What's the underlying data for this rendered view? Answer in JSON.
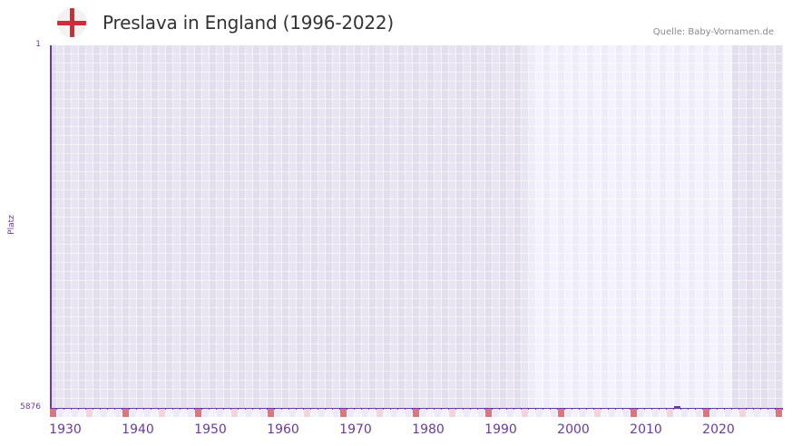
{
  "header": {
    "title": "Preslava in England (1996-2022)",
    "flag_icon": "england-flag-icon",
    "source": "Quelle: Baby-Vornamen.de"
  },
  "colors": {
    "axis": "#6a3aa0",
    "grid_dark": "#e4e0ef",
    "grid_light": "#f1eefb",
    "decade_marker": "#e0737c",
    "midyear_marker": "#f6d3dc",
    "flag_red": "#d22a36"
  },
  "chart_data": {
    "type": "line",
    "title": "Preslava in England (1996-2022)",
    "xlabel": "",
    "ylabel": "Platz",
    "y_ticks": [
      "1",
      "5876"
    ],
    "ylim": [
      5876,
      1
    ],
    "y_inverted": true,
    "x_ticks": [
      1930,
      1940,
      1950,
      1960,
      1970,
      1980,
      1990,
      2000,
      2010,
      2020
    ],
    "xlim": [
      1928,
      2028
    ],
    "highlight_range": [
      1994,
      2021
    ],
    "series": [
      {
        "name": "Preslava",
        "x": [
          2015
        ],
        "values": [
          5876
        ]
      }
    ],
    "grid": true,
    "legend": "none"
  },
  "axis": {
    "y_top": "1",
    "y_bottom": "5876",
    "y_label": "Platz",
    "x_labels": [
      "1930",
      "1940",
      "1950",
      "1960",
      "1970",
      "1980",
      "1990",
      "2000",
      "2010",
      "2020"
    ]
  }
}
